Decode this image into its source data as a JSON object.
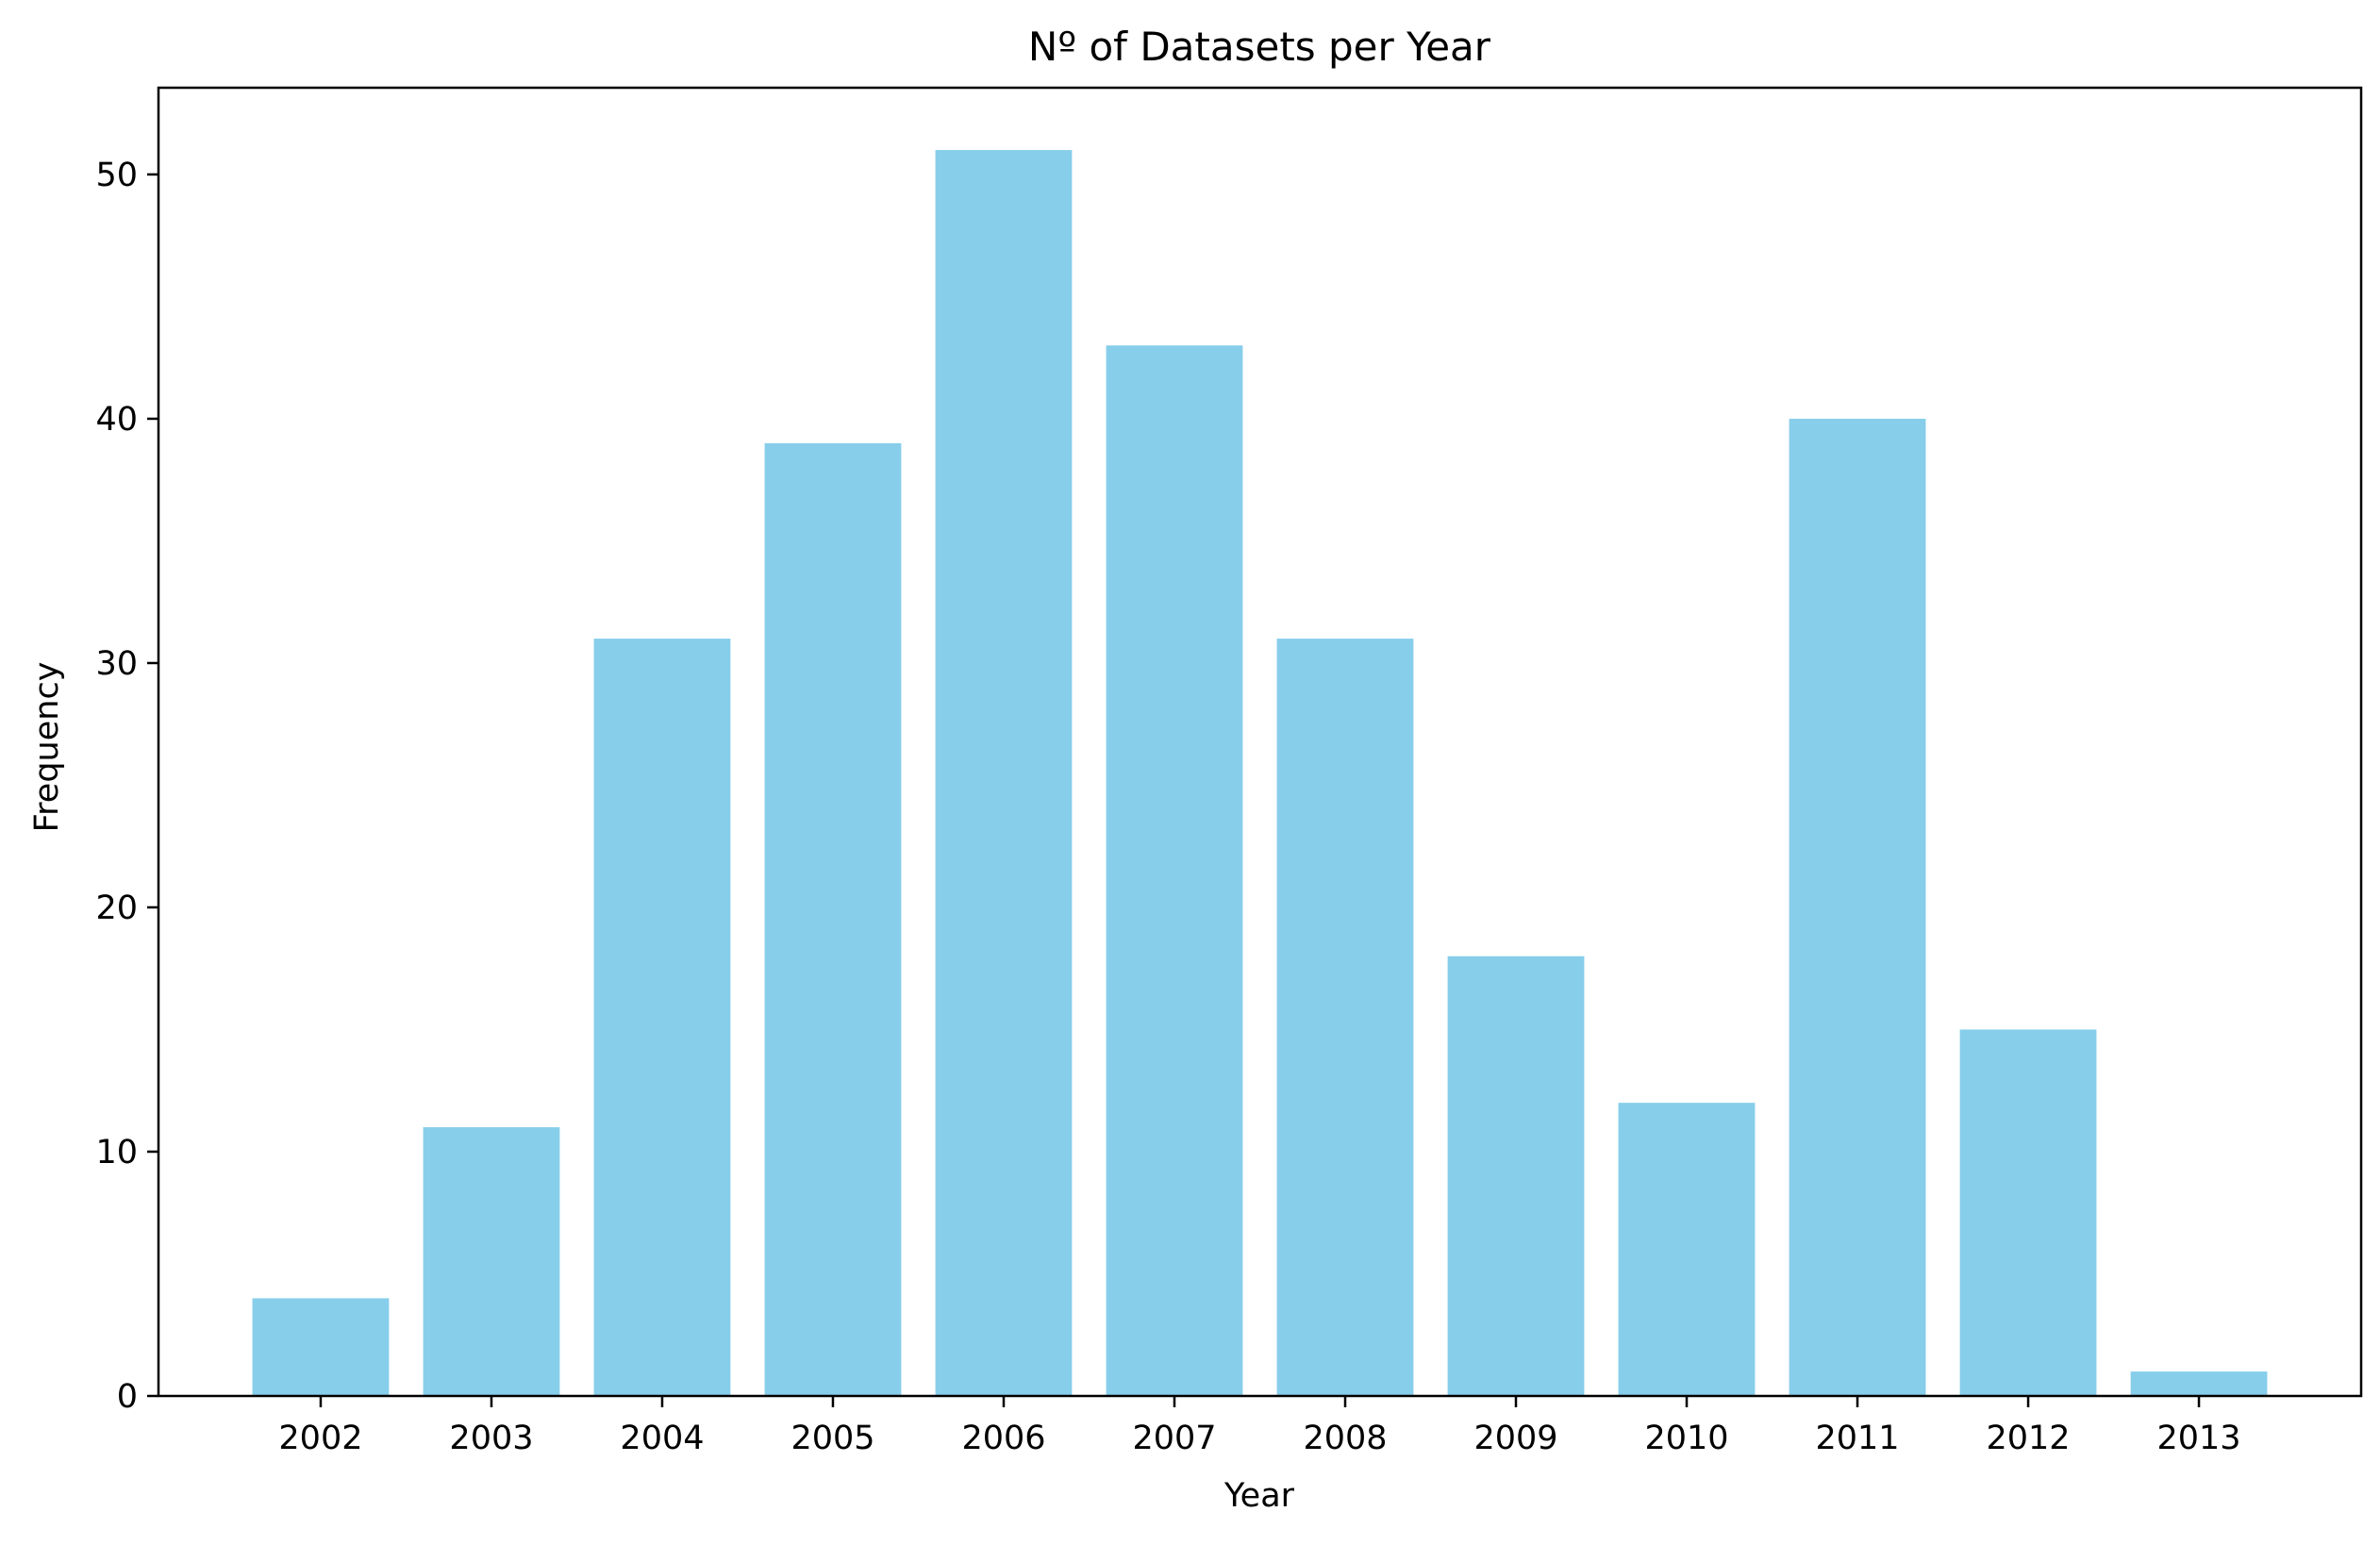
{
  "chart_data": {
    "type": "bar",
    "title": "Nº of Datasets per Year",
    "xlabel": "Year",
    "ylabel": "Frequency",
    "categories": [
      "2002",
      "2003",
      "2004",
      "2005",
      "2006",
      "2007",
      "2008",
      "2009",
      "2010",
      "2011",
      "2012",
      "2013"
    ],
    "values": [
      4,
      11,
      31,
      39,
      51,
      43,
      31,
      18,
      12,
      40,
      15,
      1
    ],
    "ylim": [
      0,
      53.55
    ],
    "yticks": [
      0,
      10,
      20,
      30,
      40,
      50
    ],
    "grid": false,
    "legend": "none",
    "bar_color": "#87ceeb"
  }
}
